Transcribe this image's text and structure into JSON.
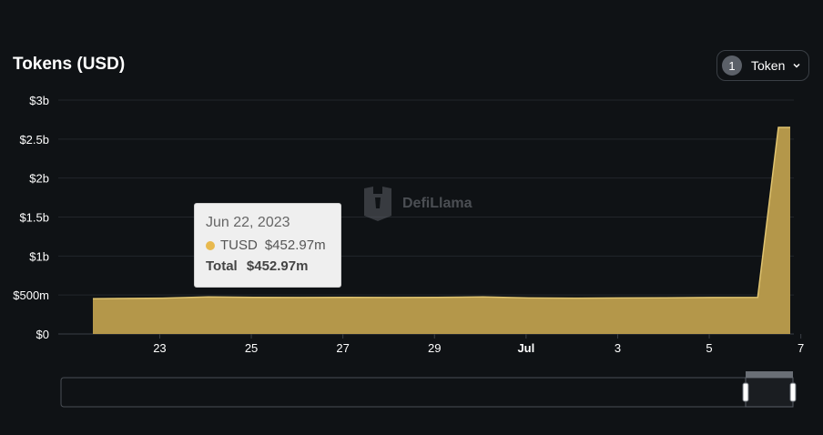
{
  "header": {
    "title": "Tokens (USD)",
    "token_count": "1",
    "token_label": "Token"
  },
  "watermark": {
    "text": "DefiLlama"
  },
  "tooltip": {
    "date": "Jun 22, 2023",
    "series_name": "TUSD",
    "series_value": "$452.97m",
    "total_label": "Total",
    "total_value": "$452.97m"
  },
  "colors": {
    "background": "#0f1215",
    "area_fill": "#b4974a",
    "area_stroke": "#e0c470",
    "grid": "#22262b",
    "tooltip_dot": "#e8b94e"
  },
  "chart_data": {
    "type": "area",
    "title": "Tokens (USD)",
    "xlabel": "",
    "ylabel": "",
    "grid": true,
    "legend": "none",
    "x_ticks": [
      "23",
      "25",
      "27",
      "29",
      "Jul",
      "3",
      "5",
      "7"
    ],
    "y_ticks": [
      "$0",
      "$500m",
      "$1b",
      "$1.5b",
      "$2b",
      "$2.5b",
      "$3b"
    ],
    "ylim": [
      0,
      3000
    ],
    "y_unit": "$m",
    "series": [
      {
        "name": "TUSD",
        "x": [
          "2023-06-22",
          "2023-06-23",
          "2023-06-24",
          "2023-06-25",
          "2023-06-26",
          "2023-06-27",
          "2023-06-28",
          "2023-06-29",
          "2023-06-30",
          "2023-07-01",
          "2023-07-02",
          "2023-07-03",
          "2023-07-04",
          "2023-07-05",
          "2023-07-06",
          "2023-07-07",
          "2023-07-08"
        ],
        "values": [
          452.97,
          460,
          475,
          470,
          468,
          470,
          468,
          470,
          475,
          462,
          460,
          462,
          465,
          468,
          470,
          2650,
          2650
        ]
      }
    ]
  }
}
